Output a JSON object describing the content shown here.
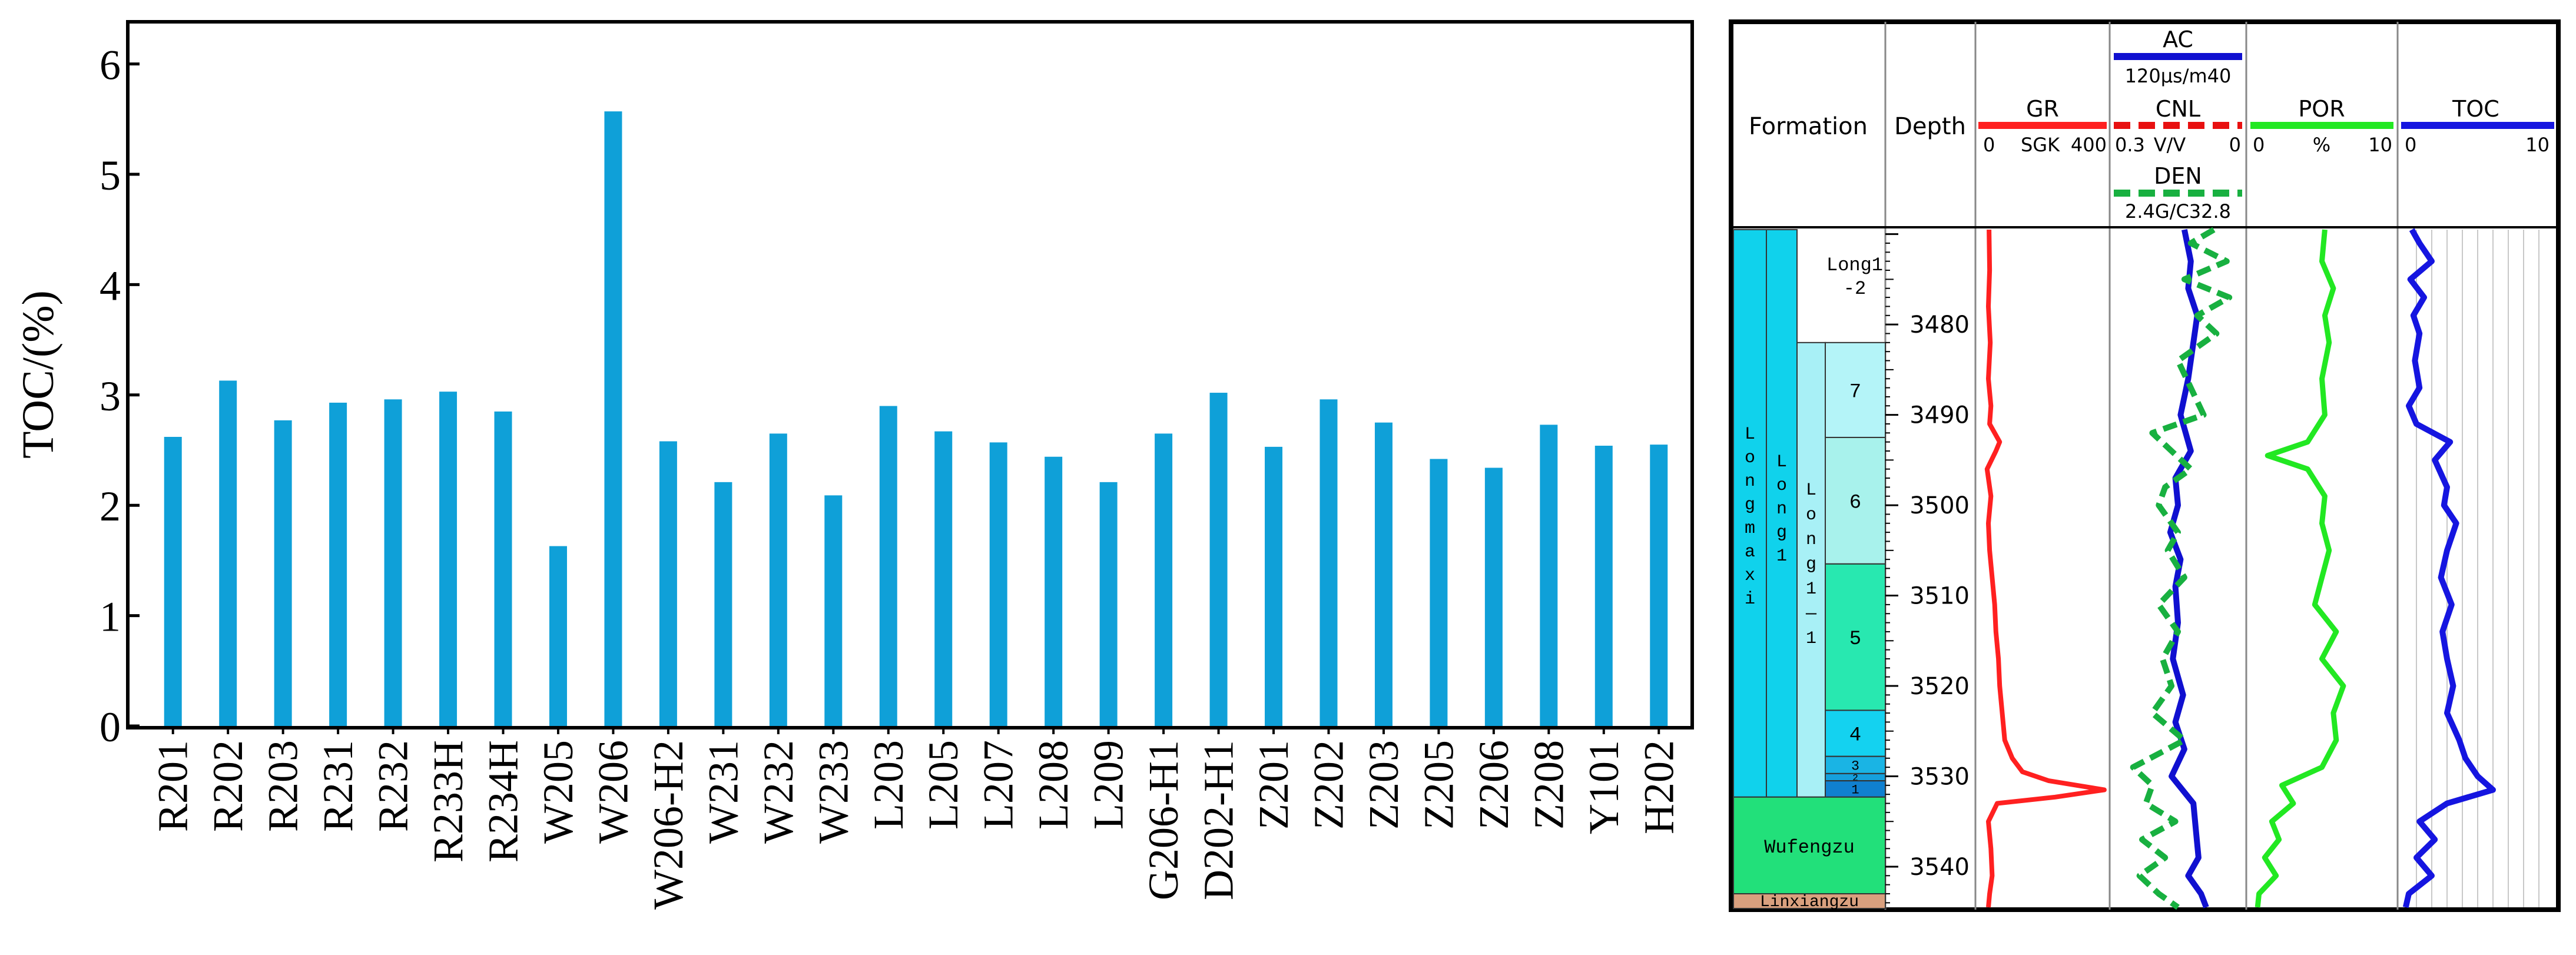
{
  "chart_data": [
    {
      "type": "bar",
      "ylabel": "TOC/(%)",
      "ylim": [
        0,
        6.4
      ],
      "yticks": [
        "0",
        "1",
        "2",
        "3",
        "4",
        "5",
        "6"
      ],
      "categories": [
        "R201",
        "R202",
        "R203",
        "R231",
        "R232",
        "R233H",
        "R234H",
        "W205",
        "W206",
        "W206-H2",
        "W231",
        "W232",
        "W233",
        "L203",
        "L205",
        "L207",
        "L208",
        "L209",
        "G206-H1",
        "D202-H1",
        "Z201",
        "Z202",
        "Z203",
        "Z205",
        "Z206",
        "Z208",
        "Y101",
        "H202"
      ],
      "values": [
        2.62,
        3.13,
        2.77,
        2.93,
        2.96,
        3.03,
        2.85,
        1.63,
        5.57,
        2.58,
        2.21,
        2.65,
        2.09,
        2.9,
        2.67,
        2.57,
        2.44,
        2.21,
        2.65,
        3.02,
        2.53,
        2.96,
        2.75,
        2.42,
        2.34,
        2.73,
        2.54,
        2.55
      ],
      "bar_color": "#0fa0d8",
      "grid": false,
      "legend": "none"
    },
    {
      "type": "well-log",
      "header": {
        "formation": "Formation",
        "depth": "Depth",
        "gr": {
          "name": "GR",
          "min": "0",
          "unit": "SGK",
          "max": "400",
          "color": "#ff2020"
        },
        "ac": {
          "name": "AC",
          "scale": "120μs/m40",
          "color": "#1010d0"
        },
        "cnl": {
          "name": "CNL",
          "min": "0.3",
          "unit": "V/V",
          "max": "0",
          "color": "#e81010"
        },
        "den": {
          "name": "DEN",
          "scale": "2.4G/C32.8",
          "color": "#18b040"
        },
        "por": {
          "name": "POR",
          "min": "0",
          "unit": "%",
          "max": "10",
          "color": "#22e822"
        },
        "toc": {
          "name": "TOC",
          "min": "0",
          "max": "10",
          "color": "#1515e0"
        }
      },
      "depth_range": [
        3469.5,
        3544.5
      ],
      "depth_ticks": [
        "3480",
        "3490",
        "3500",
        "3510",
        "3520",
        "3530",
        "3540"
      ],
      "formations": {
        "longmaxi": "Longmaxi",
        "long1": "Long1",
        "long1_1": "Long1-1",
        "long1_2": {
          "line1": "Long1",
          "line2": "-2"
        },
        "wufengzu": "Wufengzu",
        "linxiangzu": "Linxiangzu"
      },
      "sublayers": [
        {
          "label": "7",
          "top": 3482.0,
          "bottom": 3492.5,
          "color": "#b4f4f8"
        },
        {
          "label": "6",
          "top": 3492.5,
          "bottom": 3506.5,
          "color": "#a8f2ec"
        },
        {
          "label": "5",
          "top": 3506.5,
          "bottom": 3522.7,
          "color": "#28e8b0"
        },
        {
          "label": "4",
          "top": 3522.7,
          "bottom": 3527.8,
          "color": "#14d2f0"
        },
        {
          "label": "3",
          "top": 3527.8,
          "bottom": 3529.7,
          "color": "#1ab4e4"
        },
        {
          "label": "2",
          "top": 3529.7,
          "bottom": 3530.5,
          "color": "#16a0dc"
        },
        {
          "label": "1",
          "top": 3530.5,
          "bottom": 3532.3,
          "color": "#1080d0"
        }
      ],
      "colors": {
        "longmaxi": "#10d2ec",
        "long1": "#10d2ec",
        "long1_1": "#a8f0f6",
        "wufengzu": "#22e07a",
        "linxiangzu": "#d9a07e"
      },
      "curves": {
        "gr": [
          [
            3469.5,
            0.075
          ],
          [
            3474,
            0.08
          ],
          [
            3478,
            0.07
          ],
          [
            3482,
            0.085
          ],
          [
            3486,
            0.07
          ],
          [
            3489,
            0.09
          ],
          [
            3491,
            0.08
          ],
          [
            3493,
            0.16
          ],
          [
            3494,
            0.13
          ],
          [
            3496,
            0.06
          ],
          [
            3499,
            0.09
          ],
          [
            3502,
            0.07
          ],
          [
            3505,
            0.08
          ],
          [
            3508,
            0.1
          ],
          [
            3511,
            0.12
          ],
          [
            3514,
            0.13
          ],
          [
            3517,
            0.15
          ],
          [
            3520,
            0.16
          ],
          [
            3523,
            0.18
          ],
          [
            3526,
            0.2
          ],
          [
            3528,
            0.26
          ],
          [
            3529.5,
            0.34
          ],
          [
            3530.5,
            0.55
          ],
          [
            3531.5,
            0.99
          ],
          [
            3532.3,
            0.6
          ],
          [
            3533,
            0.14
          ],
          [
            3535,
            0.07
          ],
          [
            3538,
            0.09
          ],
          [
            3541,
            0.1
          ],
          [
            3543,
            0.08
          ],
          [
            3544.5,
            0.07
          ]
        ],
        "ac": [
          [
            3469.5,
            0.55
          ],
          [
            3473,
            0.6
          ],
          [
            3476,
            0.58
          ],
          [
            3479,
            0.65
          ],
          [
            3482,
            0.62
          ],
          [
            3486,
            0.58
          ],
          [
            3490,
            0.52
          ],
          [
            3494,
            0.6
          ],
          [
            3497,
            0.48
          ],
          [
            3500,
            0.5
          ],
          [
            3503,
            0.44
          ],
          [
            3506,
            0.52
          ],
          [
            3509,
            0.48
          ],
          [
            3513,
            0.5
          ],
          [
            3517,
            0.46
          ],
          [
            3521,
            0.54
          ],
          [
            3524,
            0.48
          ],
          [
            3527,
            0.55
          ],
          [
            3530,
            0.45
          ],
          [
            3533,
            0.62
          ],
          [
            3536,
            0.64
          ],
          [
            3539,
            0.66
          ],
          [
            3541,
            0.58
          ],
          [
            3543,
            0.68
          ],
          [
            3544.5,
            0.72
          ]
        ],
        "den": [
          [
            3469.5,
            0.78
          ],
          [
            3471,
            0.6
          ],
          [
            3473,
            0.88
          ],
          [
            3475,
            0.55
          ],
          [
            3477,
            0.9
          ],
          [
            3479,
            0.65
          ],
          [
            3481,
            0.8
          ],
          [
            3484,
            0.5
          ],
          [
            3487,
            0.6
          ],
          [
            3490,
            0.7
          ],
          [
            3492,
            0.3
          ],
          [
            3494,
            0.45
          ],
          [
            3496,
            0.6
          ],
          [
            3498,
            0.4
          ],
          [
            3500,
            0.35
          ],
          [
            3503,
            0.5
          ],
          [
            3505,
            0.42
          ],
          [
            3508,
            0.55
          ],
          [
            3511,
            0.35
          ],
          [
            3514,
            0.5
          ],
          [
            3517,
            0.38
          ],
          [
            3520,
            0.45
          ],
          [
            3523,
            0.3
          ],
          [
            3526,
            0.55
          ],
          [
            3529,
            0.15
          ],
          [
            3531,
            0.3
          ],
          [
            3533,
            0.25
          ],
          [
            3535,
            0.48
          ],
          [
            3537,
            0.22
          ],
          [
            3539,
            0.4
          ],
          [
            3541,
            0.2
          ],
          [
            3543,
            0.35
          ],
          [
            3544.5,
            0.5
          ]
        ],
        "por": [
          [
            3469.5,
            0.52
          ],
          [
            3473,
            0.5
          ],
          [
            3476,
            0.58
          ],
          [
            3479,
            0.52
          ],
          [
            3482,
            0.55
          ],
          [
            3486,
            0.5
          ],
          [
            3490,
            0.52
          ],
          [
            3493,
            0.4
          ],
          [
            3494.5,
            0.12
          ],
          [
            3496,
            0.4
          ],
          [
            3499,
            0.52
          ],
          [
            3502,
            0.5
          ],
          [
            3505,
            0.55
          ],
          [
            3508,
            0.5
          ],
          [
            3511,
            0.45
          ],
          [
            3514,
            0.6
          ],
          [
            3517,
            0.5
          ],
          [
            3520,
            0.65
          ],
          [
            3523,
            0.58
          ],
          [
            3526,
            0.6
          ],
          [
            3529,
            0.5
          ],
          [
            3531,
            0.22
          ],
          [
            3533,
            0.3
          ],
          [
            3535,
            0.15
          ],
          [
            3537,
            0.2
          ],
          [
            3539,
            0.1
          ],
          [
            3541,
            0.18
          ],
          [
            3543,
            0.06
          ],
          [
            3544.5,
            0.05
          ]
        ],
        "toc": [
          [
            3469.5,
            0.07
          ],
          [
            3471,
            0.12
          ],
          [
            3473,
            0.2
          ],
          [
            3475,
            0.06
          ],
          [
            3477,
            0.15
          ],
          [
            3479,
            0.08
          ],
          [
            3481,
            0.12
          ],
          [
            3484,
            0.09
          ],
          [
            3487,
            0.12
          ],
          [
            3489,
            0.05
          ],
          [
            3491,
            0.1
          ],
          [
            3493,
            0.32
          ],
          [
            3495,
            0.22
          ],
          [
            3498,
            0.3
          ],
          [
            3500,
            0.28
          ],
          [
            3502,
            0.36
          ],
          [
            3505,
            0.3
          ],
          [
            3508,
            0.26
          ],
          [
            3511,
            0.33
          ],
          [
            3514,
            0.27
          ],
          [
            3517,
            0.3
          ],
          [
            3520,
            0.34
          ],
          [
            3523,
            0.3
          ],
          [
            3526,
            0.38
          ],
          [
            3528,
            0.42
          ],
          [
            3530,
            0.5
          ],
          [
            3531.5,
            0.6
          ],
          [
            3533,
            0.3
          ],
          [
            3535,
            0.12
          ],
          [
            3537,
            0.22
          ],
          [
            3539,
            0.1
          ],
          [
            3541,
            0.2
          ],
          [
            3543,
            0.05
          ],
          [
            3544.5,
            0.03
          ]
        ]
      }
    }
  ]
}
